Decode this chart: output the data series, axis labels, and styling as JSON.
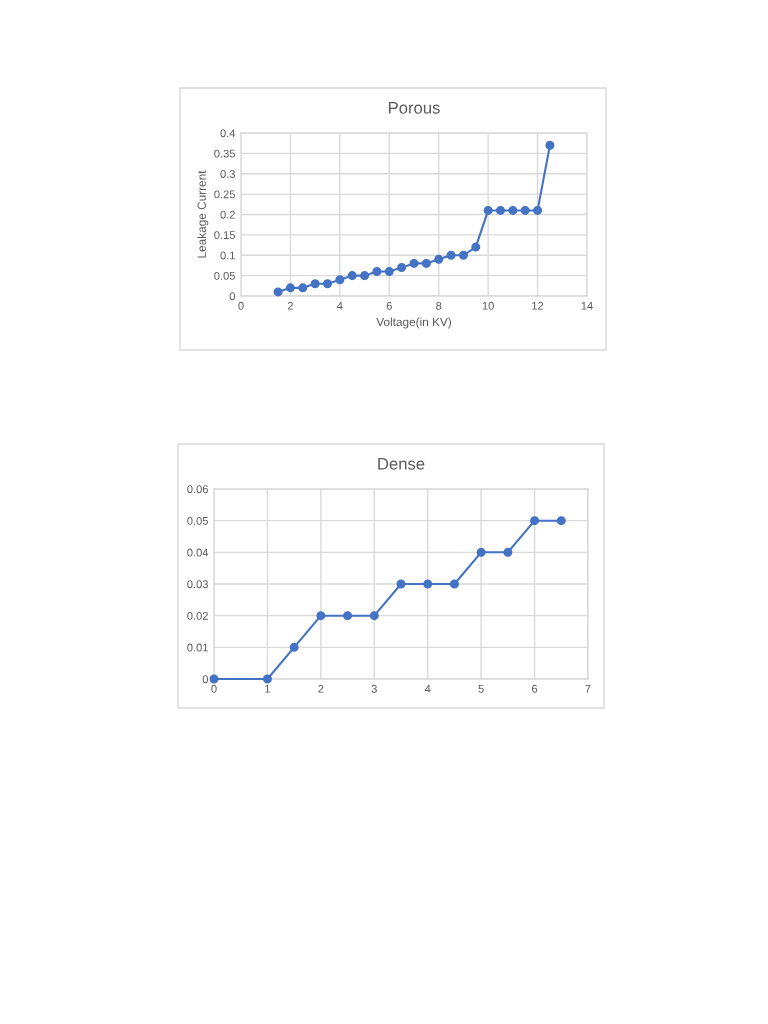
{
  "chart_data": [
    {
      "type": "line",
      "title": "Porous",
      "xlabel": "Voltage(in KV)",
      "ylabel": "Leakage Current",
      "marker": "circle",
      "line_style": "solid",
      "grid": true,
      "xlim": [
        0,
        14
      ],
      "xticks": [
        0,
        2,
        4,
        6,
        8,
        10,
        12,
        14
      ],
      "ylim": [
        0,
        0.4
      ],
      "yticks": [
        0,
        0.05,
        0.1,
        0.15,
        0.2,
        0.25,
        0.3,
        0.35,
        0.4
      ],
      "series": [
        {
          "color": "#4472c4",
          "x": [
            1.5,
            2,
            2.5,
            3,
            3.5,
            4,
            4.5,
            5,
            5.5,
            6,
            6.5,
            7,
            7.5,
            8,
            8.5,
            9,
            9.5,
            10,
            10.5,
            11,
            11.5,
            12,
            12.5
          ],
          "values": [
            0.01,
            0.02,
            0.02,
            0.03,
            0.03,
            0.04,
            0.05,
            0.05,
            0.06,
            0.06,
            0.07,
            0.08,
            0.08,
            0.09,
            0.1,
            0.1,
            0.12,
            0.21,
            0.21,
            0.21,
            0.21,
            0.21,
            0.37
          ]
        }
      ]
    },
    {
      "type": "line",
      "title": "Dense",
      "marker": "circle",
      "line_style": "solid",
      "grid": true,
      "xlim": [
        0,
        7
      ],
      "xticks": [
        0,
        1,
        2,
        3,
        4,
        5,
        6,
        7
      ],
      "ylim": [
        0,
        0.06
      ],
      "yticks": [
        0,
        0.01,
        0.02,
        0.03,
        0.04,
        0.05,
        0.06
      ],
      "series": [
        {
          "color": "#4472c4",
          "x": [
            0,
            1,
            1.5,
            2,
            2.5,
            3,
            3.5,
            4,
            4.5,
            5,
            5.5,
            6,
            6.5
          ],
          "values": [
            0,
            0,
            0.01,
            0.02,
            0.02,
            0.02,
            0.03,
            0.03,
            0.03,
            0.04,
            0.04,
            0.05,
            0.05
          ]
        }
      ]
    }
  ]
}
